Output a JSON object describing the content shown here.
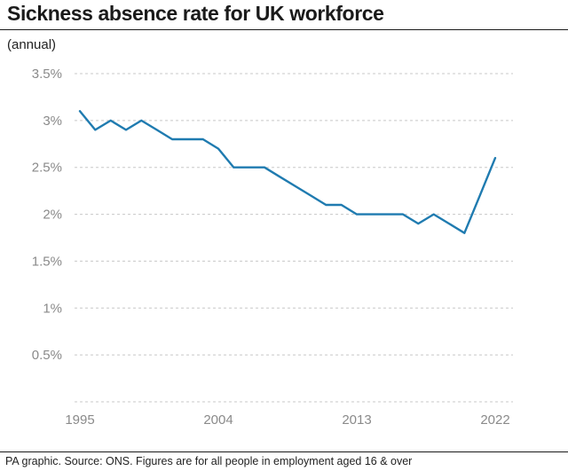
{
  "chart_data": {
    "type": "line",
    "title": "Sickness absence rate for UK workforce",
    "subtitle": "(annual)",
    "xlabel": "",
    "ylabel": "",
    "x": [
      1995,
      1996,
      1997,
      1998,
      1999,
      2000,
      2001,
      2002,
      2003,
      2004,
      2005,
      2006,
      2007,
      2008,
      2009,
      2010,
      2011,
      2012,
      2013,
      2014,
      2015,
      2016,
      2017,
      2018,
      2019,
      2020,
      2021,
      2022
    ],
    "series": [
      {
        "values": [
          3.1,
          2.9,
          3.0,
          2.9,
          3.0,
          2.9,
          2.8,
          2.8,
          2.8,
          2.7,
          2.5,
          2.5,
          2.5,
          2.4,
          2.3,
          2.2,
          2.1,
          2.1,
          2.0,
          2.0,
          2.0,
          2.0,
          1.9,
          2.0,
          1.9,
          1.8,
          2.2,
          2.6
        ],
        "color": "#1f7bb0"
      }
    ],
    "xticks": [
      1995,
      2004,
      2013,
      2022
    ],
    "xtick_labels": [
      "1995",
      "2004",
      "2013",
      "2022"
    ],
    "yticks": [
      0.5,
      1,
      1.5,
      2,
      2.5,
      3,
      3.5
    ],
    "ytick_labels": [
      "0.5%",
      "1%",
      "1.5%",
      "2%",
      "2.5%",
      "3%",
      "3.5%"
    ],
    "xlim": [
      1995,
      2022
    ],
    "ylim": [
      0,
      3.5
    ],
    "grid": "horizontal dashed",
    "legend": "none"
  },
  "footer": "PA graphic. Source: ONS. Figures are for all people in employment aged 16 & over",
  "colors": {
    "line": "#1f7bb0",
    "grid": "#c8c8c8",
    "tick_text": "#8a8a8a"
  }
}
